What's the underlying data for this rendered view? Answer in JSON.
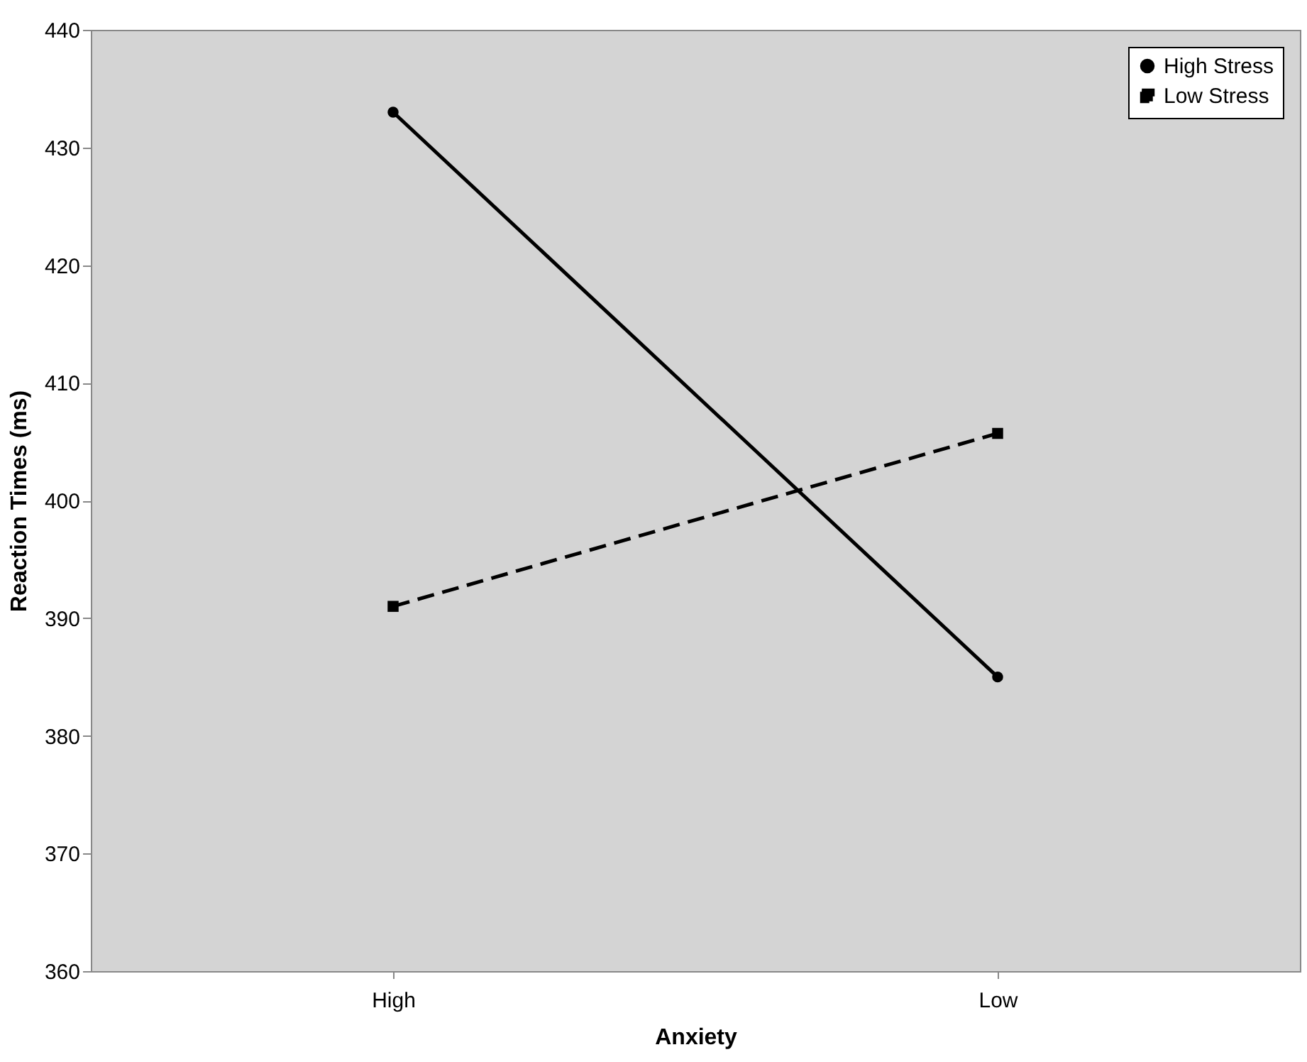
{
  "chart_data": {
    "type": "line",
    "xlabel": "Anxiety",
    "ylabel": "Reaction Times (ms)",
    "categories": [
      "High",
      "Low"
    ],
    "series": [
      {
        "name": "High Stress",
        "color": "#000000",
        "marker": "circle",
        "line_style": "solid",
        "values": [
          433,
          385
        ]
      },
      {
        "name": "Low Stress",
        "color": "#000000",
        "marker": "square",
        "line_style": "dashed",
        "values": [
          391,
          405.7
        ]
      }
    ],
    "ylim": [
      360,
      440
    ],
    "yticks": [
      360,
      370,
      380,
      390,
      400,
      410,
      420,
      430,
      440
    ],
    "grid": false,
    "legend": "top right"
  }
}
